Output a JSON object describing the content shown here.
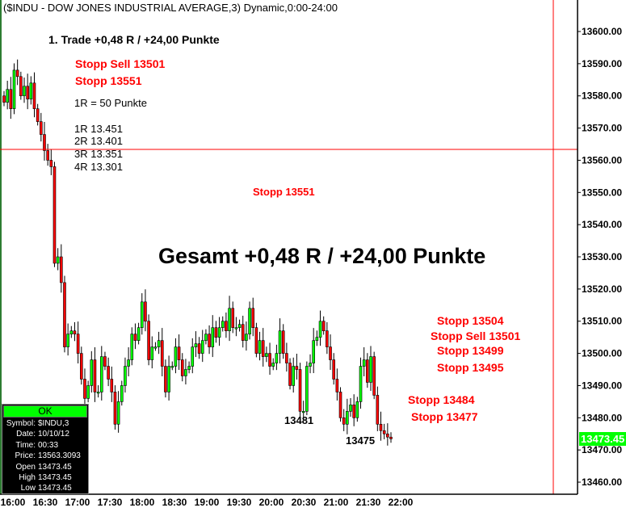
{
  "title": "($INDU - DOW JONES INDUSTRIAL AVERAGE,3) Dynamic,0:00-24:00",
  "annotations": {
    "trade": "1. Trade +0,48 R / +24,00 Punkte",
    "stopp_sell_1": "Stopp Sell 13501",
    "stopp_1": "Stopp 13551",
    "r_def": "1R = 50 Punkte",
    "r1": "1R 13.451",
    "r2": "2R 13.401",
    "r3": "3R 13.351",
    "r4": "4R 13.301",
    "stopp_mid": "Stopp 13551",
    "total": "Gesamt +0,48 R / +24,00 Punkte",
    "stopp_13504": "Stopp 13504",
    "stopp_sell_2": "Stopp Sell 13501",
    "stopp_13499": "Stopp 13499",
    "stopp_13495": "Stopp 13495",
    "stopp_13484": "Stopp 13484",
    "stopp_13477": "Stopp 13477",
    "low_13481": "13481",
    "low_13475": "13475"
  },
  "info_box": {
    "status": "OK",
    "rows": [
      {
        "k": "Symbol:",
        "v": "$INDU,3"
      },
      {
        "k": "Date:",
        "v": "10/10/12"
      },
      {
        "k": "Time:",
        "v": "00:33"
      },
      {
        "k": "Price:",
        "v": "13563.3093"
      },
      {
        "k": "Open",
        "v": "13473.45"
      },
      {
        "k": "High",
        "v": "13473.45"
      },
      {
        "k": "Low",
        "v": "13473.45"
      }
    ]
  },
  "last_price": "13473.45",
  "colors": {
    "up": "#00ff00",
    "down": "#ff0000",
    "cursor": "#ff0000",
    "accent": "#00ff00"
  },
  "chart_data": {
    "type": "candlestick",
    "x_ticks": [
      "16:00",
      "16:30",
      "17:00",
      "17:30",
      "18:00",
      "18:30",
      "19:00",
      "19:30",
      "20:00",
      "20:30",
      "21:00",
      "21:30",
      "22:00"
    ],
    "y_ticks": [
      "13600.00",
      "13590.00",
      "13580.00",
      "13570.00",
      "13560.00",
      "13550.00",
      "13540.00",
      "13530.00",
      "13520.00",
      "13510.00",
      "13500.00",
      "13490.00",
      "13480.00",
      "13470.00",
      "13460.00"
    ],
    "ylim": [
      13456,
      13610
    ],
    "cursor_price": 13563.3093,
    "closes": [
      13578,
      13582,
      13576,
      13588,
      13586,
      13580,
      13583,
      13579,
      13584,
      13576,
      13572,
      13568,
      13563,
      13560,
      13558,
      13528,
      13530,
      13522,
      13502,
      13506,
      13507,
      13506,
      13500,
      13492,
      13486,
      13490,
      13498,
      13488,
      13488,
      13499,
      13496,
      13492,
      13488,
      13478,
      13485,
      13490,
      13496,
      13498,
      13506,
      13504,
      13508,
      13516,
      13510,
      13498,
      13502,
      13502,
      13504,
      13496,
      13488,
      13496,
      13496,
      13502,
      13498,
      13493,
      13495,
      13496,
      13502,
      13503,
      13500,
      13504,
      13506,
      13502,
      13508,
      13505,
      13508,
      13510,
      13507,
      13514,
      13508,
      13508,
      13509,
      13504,
      13506,
      13514,
      13508,
      13500,
      13504,
      13499,
      13500,
      13496,
      13497,
      13500,
      13507,
      13500,
      13497,
      13490,
      13496,
      13495,
      13482,
      13482,
      13496,
      13497,
      13504,
      13505,
      13510,
      13507,
      13502,
      13498,
      13492,
      13488,
      13480,
      13478,
      13482,
      13484,
      13480,
      13485,
      13496,
      13498,
      13491,
      13499,
      13487,
      13478,
      13476,
      13475,
      13474,
      13473.45
    ]
  }
}
